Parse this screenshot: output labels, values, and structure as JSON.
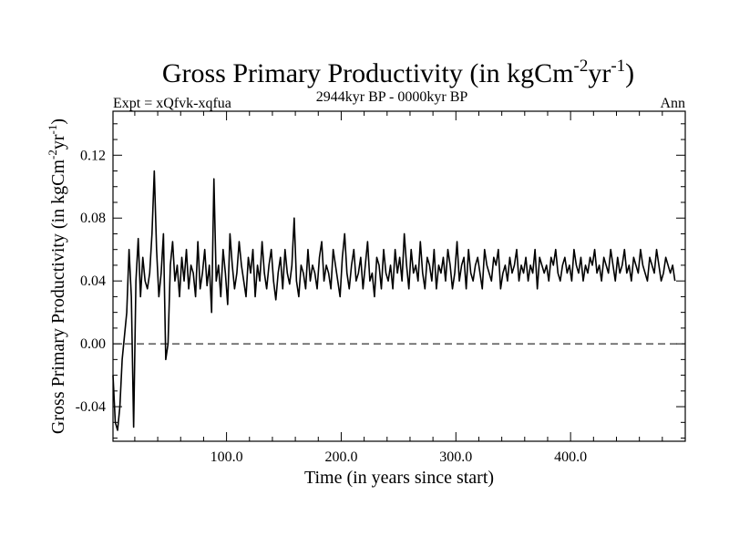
{
  "chart_data": {
    "type": "line",
    "title_main": "Gross Primary Productivity (in kgCm",
    "title_sup1": "-2",
    "title_mid": "yr",
    "title_sup2": "-1",
    "title_end": ")",
    "subtitle_left": "Expt = xQfvk-xqfua",
    "subtitle_center": "2944kyr BP - 0000kyr BP",
    "subtitle_right": "Ann",
    "xlabel": "Time (in years since start)",
    "ylabel_main": "Gross Primary Productivity (in kgCm",
    "ylabel_sup1": "-2",
    "ylabel_mid": "yr",
    "ylabel_sup2": "-1",
    "ylabel_end": ")",
    "xlim": [
      1,
      500
    ],
    "ylim": [
      -0.062,
      0.148
    ],
    "x_ticks": [
      100,
      200,
      300,
      400
    ],
    "x_tick_labels": [
      "100.0",
      "200.0",
      "300.0",
      "400.0"
    ],
    "y_ticks": [
      -0.04,
      0.0,
      0.04,
      0.08,
      0.12
    ],
    "y_tick_labels": [
      "-0.04",
      "0.00",
      "0.04",
      "0.08",
      "0.12"
    ],
    "reference_line": 0.0,
    "series_name": "Gross Primary Productivity",
    "x_start": 1,
    "x_step": 2,
    "values": [
      -0.02,
      -0.05,
      -0.055,
      -0.04,
      -0.01,
      0.005,
      0.02,
      0.06,
      0.03,
      -0.053,
      0.04,
      0.067,
      0.03,
      0.055,
      0.04,
      0.035,
      0.045,
      0.07,
      0.11,
      0.06,
      0.03,
      0.045,
      0.07,
      -0.01,
      0.0,
      0.05,
      0.065,
      0.04,
      0.05,
      0.03,
      0.055,
      0.04,
      0.06,
      0.035,
      0.05,
      0.045,
      0.03,
      0.065,
      0.035,
      0.045,
      0.06,
      0.037,
      0.05,
      0.02,
      0.105,
      0.04,
      0.05,
      0.03,
      0.06,
      0.045,
      0.025,
      0.07,
      0.05,
      0.035,
      0.045,
      0.065,
      0.05,
      0.04,
      0.03,
      0.055,
      0.045,
      0.06,
      0.03,
      0.05,
      0.04,
      0.065,
      0.045,
      0.035,
      0.05,
      0.06,
      0.04,
      0.028,
      0.045,
      0.055,
      0.035,
      0.06,
      0.045,
      0.038,
      0.05,
      0.08,
      0.04,
      0.03,
      0.05,
      0.045,
      0.035,
      0.06,
      0.04,
      0.05,
      0.045,
      0.035,
      0.055,
      0.065,
      0.04,
      0.05,
      0.045,
      0.035,
      0.06,
      0.05,
      0.04,
      0.03,
      0.055,
      0.07,
      0.045,
      0.035,
      0.05,
      0.06,
      0.04,
      0.045,
      0.055,
      0.035,
      0.05,
      0.065,
      0.04,
      0.045,
      0.03,
      0.055,
      0.05,
      0.035,
      0.06,
      0.045,
      0.04,
      0.05,
      0.035,
      0.06,
      0.045,
      0.055,
      0.04,
      0.07,
      0.05,
      0.035,
      0.06,
      0.045,
      0.05,
      0.04,
      0.065,
      0.045,
      0.035,
      0.055,
      0.05,
      0.04,
      0.06,
      0.035,
      0.05,
      0.045,
      0.055,
      0.04,
      0.06,
      0.05,
      0.035,
      0.045,
      0.065,
      0.04,
      0.05,
      0.055,
      0.035,
      0.06,
      0.045,
      0.04,
      0.05,
      0.055,
      0.045,
      0.035,
      0.06,
      0.05,
      0.045,
      0.04,
      0.055,
      0.05,
      0.06,
      0.035,
      0.045,
      0.05,
      0.04,
      0.055,
      0.045,
      0.05,
      0.06,
      0.04,
      0.05,
      0.045,
      0.055,
      0.04,
      0.05,
      0.045,
      0.06,
      0.035,
      0.055,
      0.05,
      0.045,
      0.05,
      0.04,
      0.055,
      0.05,
      0.06,
      0.045,
      0.04,
      0.05,
      0.055,
      0.045,
      0.05,
      0.04,
      0.06,
      0.05,
      0.045,
      0.055,
      0.04,
      0.05,
      0.045,
      0.055,
      0.05,
      0.06,
      0.045,
      0.05,
      0.04,
      0.055,
      0.05,
      0.045,
      0.06,
      0.05,
      0.04,
      0.055,
      0.045,
      0.05,
      0.06,
      0.045,
      0.05,
      0.04,
      0.055,
      0.05,
      0.045,
      0.06,
      0.05,
      0.045,
      0.04,
      0.055,
      0.05,
      0.045,
      0.06,
      0.05,
      0.04,
      0.045,
      0.055,
      0.05,
      0.045,
      0.05,
      0.04
    ]
  }
}
